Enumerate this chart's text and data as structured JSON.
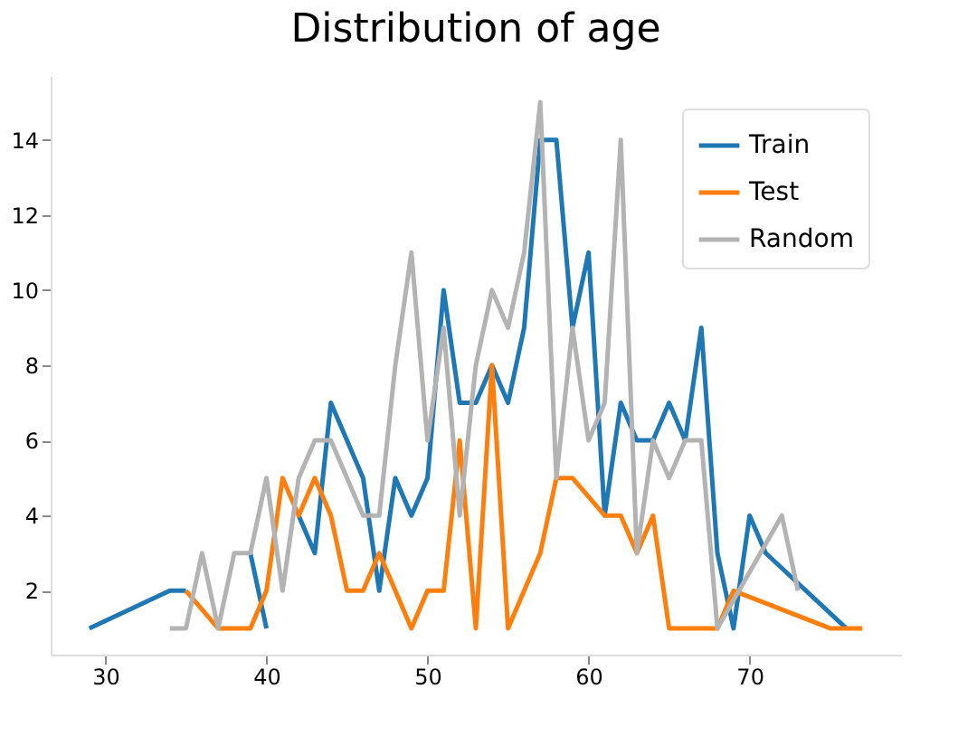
{
  "chart_data": {
    "type": "line",
    "title": "Distribution of age",
    "series": [
      {
        "name": "Train",
        "color": "#1f77b4",
        "x": [
          29,
          34,
          35,
          37,
          38,
          39,
          40,
          41,
          42,
          43,
          44,
          46,
          47,
          48,
          49,
          50,
          51,
          52,
          53,
          54,
          55,
          56,
          57,
          58,
          59,
          60,
          61,
          62,
          63,
          64,
          65,
          66,
          67,
          68,
          69,
          70,
          71,
          76
        ],
        "values": [
          1,
          2,
          2,
          null,
          null,
          3,
          1,
          null,
          4,
          3,
          7,
          5,
          2,
          5,
          4,
          5,
          10,
          7,
          7,
          8,
          7,
          9,
          14,
          14,
          9,
          11,
          4,
          7,
          6,
          6,
          7,
          6,
          9,
          3,
          1,
          4,
          3,
          1
        ]
      },
      {
        "name": "Test",
        "color": "#ff7f0e",
        "x": [
          35,
          37,
          38,
          39,
          40,
          41,
          42,
          43,
          44,
          45,
          46,
          47,
          48,
          49,
          50,
          51,
          52,
          53,
          54,
          55,
          56,
          57,
          58,
          59,
          61,
          62,
          63,
          64,
          65,
          68,
          69,
          75,
          77
        ],
        "values": [
          2,
          1,
          1,
          1,
          2,
          5,
          4,
          5,
          4,
          2,
          2,
          3,
          2,
          1,
          2,
          2,
          6,
          1,
          8,
          1,
          2,
          3,
          5,
          5,
          4,
          4,
          3,
          4,
          1,
          1,
          2,
          1,
          1
        ]
      },
      {
        "name": "Random",
        "color": "#b3b3b3",
        "x": [
          34,
          35,
          36,
          37,
          38,
          39,
          40,
          41,
          42,
          43,
          44,
          46,
          47,
          48,
          49,
          50,
          51,
          52,
          53,
          54,
          55,
          56,
          57,
          58,
          59,
          60,
          61,
          62,
          63,
          64,
          65,
          66,
          67,
          68,
          72,
          73
        ],
        "values": [
          1,
          1,
          3,
          1,
          3,
          3,
          5,
          2,
          5,
          6,
          6,
          4,
          4,
          8,
          11,
          6,
          9,
          4,
          8,
          10,
          9,
          11,
          15,
          5,
          9,
          6,
          7,
          14,
          3,
          6,
          5,
          6,
          6,
          1,
          4,
          2
        ]
      }
    ],
    "xlim": [
      26.6,
      79.4
    ],
    "xticks": [
      30,
      40,
      50,
      60,
      70
    ],
    "ylim": [
      0.3,
      15.7
    ],
    "yticks": [
      2,
      4,
      6,
      8,
      10,
      12,
      14
    ],
    "grid": false,
    "legend": "top right",
    "line_style": "solid"
  }
}
